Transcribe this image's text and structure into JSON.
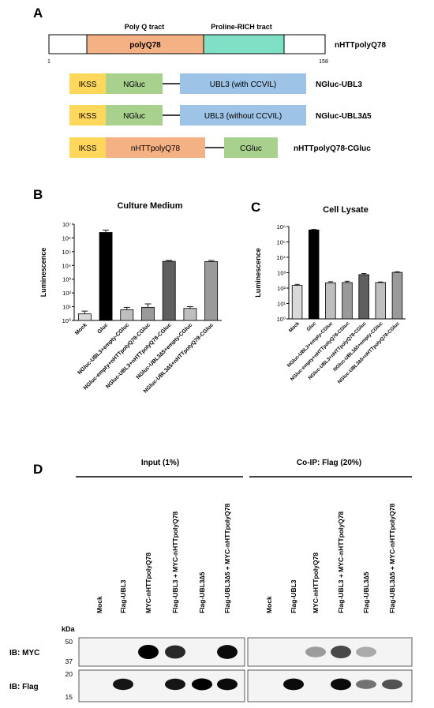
{
  "panel_a": {
    "letter": "A",
    "construct_main": {
      "tract_poly_q": "Poly Q tract",
      "tract_proline": "Proline-RICH tract",
      "segment_label": "polyQ78",
      "name": "nHTTpolyQ78",
      "start": "1",
      "end": "158",
      "colors": {
        "polyq": "#f4b183",
        "proline": "#7fe0c6"
      }
    },
    "constructs": [
      {
        "name": "NGluc-UBL3",
        "segments": [
          "IKSS",
          "NGluc",
          "UBL3 (with CCVIL)"
        ]
      },
      {
        "name": "NGluc-UBL3∆5",
        "segments": [
          "IKSS",
          "NGluc",
          "UBL3 (without CCVIL)"
        ]
      },
      {
        "name": "nHTTpolyQ78-CGluc",
        "segments": [
          "IKSS",
          "nHTTpolyQ78",
          "CGluc"
        ]
      }
    ],
    "segment_colors": {
      "ikss": "#ffd75a",
      "gluc": "#a9d18e",
      "ubl3": "#9dc3e6",
      "htt": "#f4b183"
    }
  },
  "chart_data": [
    {
      "type": "bar",
      "panel": "B",
      "title": "Culture Medium",
      "ylabel": "Luminescence",
      "scale": "log",
      "ylim": [
        1,
        10000000
      ],
      "yticks": [
        "10⁰",
        "10¹",
        "10²",
        "10³",
        "10⁴",
        "10⁵",
        "10⁶",
        "10⁷"
      ],
      "categories": [
        "Mock",
        "Gluc",
        "NGluc-UBL3+empty-CGluc",
        "NGluc-empty+nHTTpolyQ78-CGluc",
        "NGluc-UBL3+nHTTpolyQ78-CGluc",
        "NGluc-UBL3∆5+empty-CGluc",
        "NGluc-UBL3∆5+nHTTpolyQ78-CGluc"
      ],
      "values": [
        3,
        2500000,
        6,
        9,
        20000,
        7.5,
        19000
      ],
      "errors_upper": [
        4.8,
        3700000,
        9,
        16,
        23000,
        10,
        23000
      ],
      "colors": [
        "#d9d9d9",
        "#000000",
        "#bfbfbf",
        "#9a9a9a",
        "#5f5f5f",
        "#bfbfbf",
        "#9a9a9a"
      ],
      "grid": false
    },
    {
      "type": "bar",
      "panel": "C",
      "title": "Cell Lysate",
      "ylabel": "Luminescence",
      "scale": "log",
      "ylim": [
        1,
        1000000
      ],
      "yticks": [
        "10⁰",
        "10¹",
        "10²",
        "10³",
        "10⁴",
        "10⁵",
        "10⁶"
      ],
      "categories": [
        "Mock",
        "Gluc",
        "NGluc-UBL3+empty-CGluc",
        "NGluc-empty+nHTTpolyQ78-CGluc",
        "NGluc-UBL3+nHTTpolyQ78-CGluc",
        "NGluc-UBL3∆5+empty-CGluc",
        "NGluc-UBL3∆5+nHTTpolyQ78-CGluc"
      ],
      "values": [
        150,
        600000,
        220,
        230,
        750,
        230,
        1050
      ],
      "errors_upper": [
        175,
        650000,
        260,
        280,
        880,
        250,
        1150
      ],
      "colors": [
        "#d9d9d9",
        "#000000",
        "#bfbfbf",
        "#9a9a9a",
        "#5f5f5f",
        "#bfbfbf",
        "#9a9a9a"
      ],
      "grid": false
    }
  ],
  "panel_b_letter": "B",
  "panel_c_letter": "C",
  "panel_d": {
    "letter": "D",
    "input_label": "Input (1%)",
    "coip_label": "Co-IP: Flag (20%)",
    "kda_label": "kDa",
    "lanes": [
      "Mock",
      "Flag-UBL3",
      "MYC-nHTTpolyQ78",
      "Flag-UBL3 + MYC-nHTTpolyQ78",
      "Flag-UBL3∆5",
      "Flag-UBL3∆5 + MYC-nHTTpolyQ78"
    ],
    "blots": [
      {
        "label": "IB: MYC",
        "markers": [
          "50",
          "37"
        ],
        "input_band": [
          0,
          0,
          1.0,
          0.8,
          0,
          0.95
        ],
        "coip_band": [
          0,
          0,
          0.25,
          0.65,
          0.18,
          0
        ]
      },
      {
        "label": "IB: Flag",
        "markers": [
          "20",
          "15"
        ],
        "input_band": [
          0,
          0.9,
          0,
          0.9,
          1.0,
          0.95
        ],
        "coip_band": [
          0,
          0.95,
          0,
          0.95,
          0.45,
          0.6
        ]
      }
    ]
  }
}
